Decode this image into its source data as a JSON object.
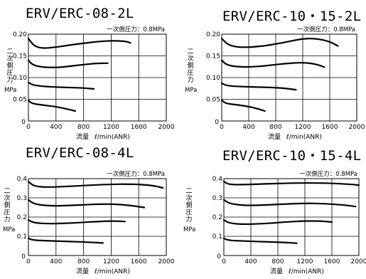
{
  "chart_data": [
    {
      "type": "line",
      "title": "ERV/ERC-08-2L",
      "annotation": "一次側圧力：0.8MPa",
      "ylabel": "二次側圧力",
      "yunit": "MPa",
      "xlabel_main": "流量",
      "xlabel_unit": "ℓ/min(ANR)",
      "xlim": [
        0,
        2000
      ],
      "ylim": [
        0,
        0.2
      ],
      "xticks": [
        "0",
        "400",
        "800",
        "1200",
        "1600",
        "2000"
      ],
      "yticks": [
        "0.05",
        "0.10",
        "0.15",
        "0.20"
      ],
      "grid": true,
      "series": [
        {
          "x": [
            0,
            80,
            200,
            400,
            600,
            800,
            1000,
            1200,
            1400,
            1480
          ],
          "y": [
            0.19,
            0.173,
            0.167,
            0.17,
            0.175,
            0.179,
            0.183,
            0.185,
            0.184,
            0.18
          ]
        },
        {
          "x": [
            0,
            60,
            200,
            400,
            600,
            800,
            1000,
            1150
          ],
          "y": [
            0.14,
            0.129,
            0.124,
            0.123,
            0.126,
            0.13,
            0.133,
            0.133
          ]
        },
        {
          "x": [
            0,
            60,
            200,
            400,
            600,
            800,
            950
          ],
          "y": [
            0.089,
            0.083,
            0.08,
            0.078,
            0.077,
            0.076,
            0.074
          ]
        },
        {
          "x": [
            0,
            50,
            200,
            400,
            550,
            680
          ],
          "y": [
            0.048,
            0.04,
            0.037,
            0.033,
            0.028,
            0.023
          ]
        }
      ]
    },
    {
      "type": "line",
      "title": "ERV/ERC-10・15-2L",
      "annotation": "一次側圧力：0.8MPa",
      "ylabel": "二次側圧力",
      "yunit": "MPa",
      "xlabel_main": "流量",
      "xlabel_unit": "ℓ/min(ANR)",
      "xlim": [
        0,
        2000
      ],
      "ylim": [
        0,
        0.2
      ],
      "xticks": [
        "0",
        "400",
        "800",
        "1200",
        "1600",
        "2000"
      ],
      "yticks": [
        "0.05",
        "0.10",
        "0.15",
        "0.20"
      ],
      "grid": true,
      "series": [
        {
          "x": [
            0,
            100,
            300,
            600,
            900,
            1200,
            1400,
            1600,
            1720
          ],
          "y": [
            0.19,
            0.174,
            0.169,
            0.172,
            0.18,
            0.19,
            0.19,
            0.183,
            0.173
          ]
        },
        {
          "x": [
            0,
            80,
            300,
            600,
            900,
            1200,
            1400,
            1520
          ],
          "y": [
            0.14,
            0.128,
            0.124,
            0.126,
            0.132,
            0.135,
            0.131,
            0.124
          ]
        },
        {
          "x": [
            0,
            80,
            300,
            600,
            900,
            1100
          ],
          "y": [
            0.087,
            0.081,
            0.079,
            0.078,
            0.076,
            0.072
          ]
        },
        {
          "x": [
            0,
            60,
            250,
            450,
            640
          ],
          "y": [
            0.048,
            0.04,
            0.037,
            0.032,
            0.023
          ]
        }
      ]
    },
    {
      "type": "line",
      "title": "ERV/ERC-08-4L",
      "annotation": "一次側圧力：0.8MPa",
      "ylabel": "二次側圧力",
      "yunit": "MPa",
      "xlabel_main": "流量",
      "xlabel_unit": "ℓ/min(ANR)",
      "xlim": [
        0,
        2000
      ],
      "ylim": [
        0,
        0.4
      ],
      "xticks": [
        "0",
        "400",
        "800",
        "1200",
        "1600",
        "2000"
      ],
      "yticks": [
        "0.1",
        "0.2",
        "0.3",
        "0.4"
      ],
      "grid": true,
      "series": [
        {
          "x": [
            0,
            80,
            300,
            700,
            1100,
            1500,
            1800,
            1950
          ],
          "y": [
            0.385,
            0.36,
            0.355,
            0.362,
            0.37,
            0.372,
            0.365,
            0.352
          ]
        },
        {
          "x": [
            0,
            80,
            300,
            600,
            900,
            1200,
            1450,
            1680
          ],
          "y": [
            0.29,
            0.268,
            0.258,
            0.26,
            0.266,
            0.268,
            0.262,
            0.25
          ]
        },
        {
          "x": [
            0,
            80,
            300,
            600,
            900,
            1200,
            1400
          ],
          "y": [
            0.185,
            0.17,
            0.165,
            0.168,
            0.175,
            0.18,
            0.177
          ]
        },
        {
          "x": [
            0,
            60,
            300,
            600,
            900,
            1080
          ],
          "y": [
            0.09,
            0.08,
            0.076,
            0.073,
            0.069,
            0.065
          ]
        }
      ]
    },
    {
      "type": "line",
      "title": "ERV/ERC-10・15-4L",
      "annotation": "一次側圧力：0.8MPa",
      "ylabel": "二次側圧力",
      "yunit": "MPa",
      "xlabel_main": "流量",
      "xlabel_unit": "ℓ/min(ANR)",
      "xlim": [
        0,
        2000
      ],
      "ylim": [
        0,
        0.4
      ],
      "xticks": [
        "0",
        "400",
        "800",
        "1200",
        "1600",
        "2000"
      ],
      "yticks": [
        "0.1",
        "0.2",
        "0.3",
        "0.4"
      ],
      "grid": true,
      "series": [
        {
          "x": [
            0,
            80,
            400,
            800,
            1200,
            1600,
            1900,
            2000
          ],
          "y": [
            0.385,
            0.368,
            0.37,
            0.375,
            0.378,
            0.376,
            0.37,
            0.366
          ]
        },
        {
          "x": [
            0,
            80,
            300,
            600,
            900,
            1200,
            1500,
            1800,
            1950
          ],
          "y": [
            0.29,
            0.27,
            0.26,
            0.262,
            0.268,
            0.272,
            0.27,
            0.262,
            0.255
          ]
        },
        {
          "x": [
            0,
            80,
            300,
            600,
            900,
            1200,
            1450,
            1600
          ],
          "y": [
            0.185,
            0.168,
            0.162,
            0.166,
            0.174,
            0.18,
            0.179,
            0.174
          ]
        },
        {
          "x": [
            0,
            60,
            300,
            600,
            900,
            1080
          ],
          "y": [
            0.09,
            0.079,
            0.075,
            0.072,
            0.068,
            0.064
          ]
        }
      ]
    }
  ]
}
